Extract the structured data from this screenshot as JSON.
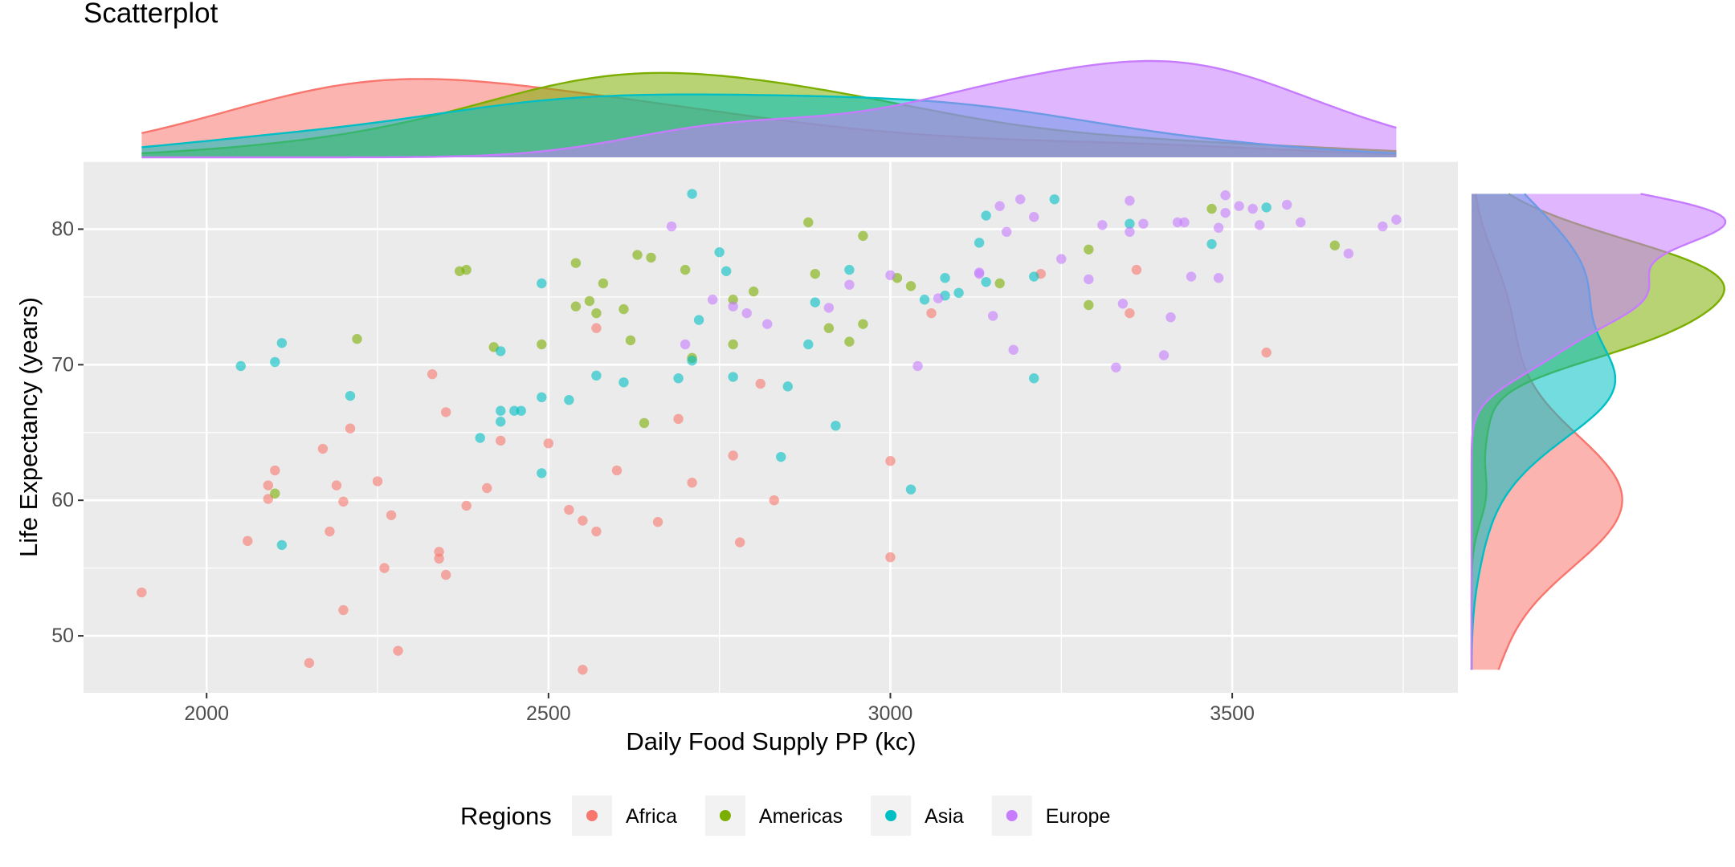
{
  "chart_data": {
    "type": "scatter",
    "title": "Scatterplot",
    "xlabel": "Daily Food Supply PP (kc)",
    "ylabel": "Life Expectancy (years)",
    "xlim": [
      1820,
      3830
    ],
    "ylim": [
      45.8,
      85.0
    ],
    "x_ticks": [
      2000,
      2500,
      3000,
      3500
    ],
    "y_ticks": [
      50,
      60,
      70,
      80
    ],
    "grid": true,
    "marginal_density": {
      "top": "x",
      "right": "y"
    },
    "legend": {
      "title": "Regions",
      "position": "bottom"
    },
    "series": [
      {
        "name": "Africa",
        "color": "#F8766D",
        "points": [
          [
            1905,
            53.2
          ],
          [
            2060,
            57.0
          ],
          [
            2090,
            61.1
          ],
          [
            2090,
            60.1
          ],
          [
            2100,
            62.2
          ],
          [
            2150,
            48.0
          ],
          [
            2170,
            63.8
          ],
          [
            2180,
            57.7
          ],
          [
            2190,
            61.1
          ],
          [
            2200,
            59.9
          ],
          [
            2200,
            51.9
          ],
          [
            2210,
            65.3
          ],
          [
            2250,
            61.4
          ],
          [
            2260,
            55.0
          ],
          [
            2270,
            58.9
          ],
          [
            2280,
            48.9
          ],
          [
            2330,
            69.3
          ],
          [
            2340,
            56.2
          ],
          [
            2340,
            55.7
          ],
          [
            2350,
            54.5
          ],
          [
            2350,
            66.5
          ],
          [
            2380,
            59.6
          ],
          [
            2410,
            60.9
          ],
          [
            2430,
            64.4
          ],
          [
            2500,
            64.2
          ],
          [
            2530,
            59.3
          ],
          [
            2550,
            58.5
          ],
          [
            2550,
            47.5
          ],
          [
            2570,
            72.7
          ],
          [
            2570,
            57.7
          ],
          [
            2600,
            62.2
          ],
          [
            2660,
            58.4
          ],
          [
            2690,
            66.0
          ],
          [
            2710,
            61.3
          ],
          [
            2770,
            63.3
          ],
          [
            2780,
            56.9
          ],
          [
            2810,
            68.6
          ],
          [
            2830,
            60.0
          ],
          [
            3000,
            62.9
          ],
          [
            3000,
            55.8
          ],
          [
            3060,
            73.8
          ],
          [
            3220,
            76.7
          ],
          [
            3350,
            73.8
          ],
          [
            3360,
            77.0
          ],
          [
            3550,
            70.9
          ]
        ]
      },
      {
        "name": "Americas",
        "color": "#7CAE00",
        "points": [
          [
            2100,
            60.5
          ],
          [
            2220,
            71.9
          ],
          [
            2370,
            76.9
          ],
          [
            2380,
            77.0
          ],
          [
            2420,
            71.3
          ],
          [
            2490,
            71.5
          ],
          [
            2540,
            77.5
          ],
          [
            2540,
            74.3
          ],
          [
            2560,
            74.7
          ],
          [
            2570,
            73.8
          ],
          [
            2580,
            76.0
          ],
          [
            2610,
            74.1
          ],
          [
            2620,
            71.8
          ],
          [
            2630,
            78.1
          ],
          [
            2640,
            65.7
          ],
          [
            2650,
            77.9
          ],
          [
            2700,
            77.0
          ],
          [
            2710,
            70.5
          ],
          [
            2770,
            71.5
          ],
          [
            2770,
            74.8
          ],
          [
            2800,
            75.4
          ],
          [
            2880,
            80.5
          ],
          [
            2890,
            76.7
          ],
          [
            2910,
            72.7
          ],
          [
            2940,
            71.7
          ],
          [
            2960,
            79.5
          ],
          [
            2960,
            73.0
          ],
          [
            3010,
            76.4
          ],
          [
            3030,
            75.8
          ],
          [
            3160,
            76.0
          ],
          [
            3290,
            78.5
          ],
          [
            3290,
            74.4
          ],
          [
            3470,
            81.5
          ],
          [
            3650,
            78.8
          ]
        ]
      },
      {
        "name": "Asia",
        "color": "#00BFC4",
        "points": [
          [
            2050,
            69.9
          ],
          [
            2100,
            70.2
          ],
          [
            2110,
            71.6
          ],
          [
            2110,
            56.7
          ],
          [
            2210,
            67.7
          ],
          [
            2400,
            64.6
          ],
          [
            2430,
            71.0
          ],
          [
            2430,
            66.6
          ],
          [
            2430,
            65.8
          ],
          [
            2450,
            66.6
          ],
          [
            2460,
            66.6
          ],
          [
            2490,
            76.0
          ],
          [
            2490,
            67.6
          ],
          [
            2490,
            62.0
          ],
          [
            2530,
            67.4
          ],
          [
            2570,
            69.2
          ],
          [
            2610,
            68.7
          ],
          [
            2690,
            69.0
          ],
          [
            2710,
            70.3
          ],
          [
            2710,
            82.6
          ],
          [
            2720,
            73.3
          ],
          [
            2750,
            78.3
          ],
          [
            2760,
            76.9
          ],
          [
            2770,
            69.1
          ],
          [
            2840,
            63.2
          ],
          [
            2850,
            68.4
          ],
          [
            2880,
            71.5
          ],
          [
            2890,
            74.6
          ],
          [
            2920,
            65.5
          ],
          [
            2940,
            77.0
          ],
          [
            3030,
            60.8
          ],
          [
            3050,
            74.8
          ],
          [
            3080,
            75.1
          ],
          [
            3080,
            76.4
          ],
          [
            3100,
            75.3
          ],
          [
            3130,
            79.0
          ],
          [
            3140,
            81.0
          ],
          [
            3140,
            76.1
          ],
          [
            3210,
            76.5
          ],
          [
            3210,
            69.0
          ],
          [
            3240,
            82.2
          ],
          [
            3350,
            80.4
          ],
          [
            3470,
            78.9
          ],
          [
            3550,
            81.6
          ]
        ]
      },
      {
        "name": "Europe",
        "color": "#C77CFF",
        "points": [
          [
            2680,
            80.2
          ],
          [
            2700,
            71.5
          ],
          [
            2740,
            74.8
          ],
          [
            2770,
            74.3
          ],
          [
            2790,
            73.8
          ],
          [
            2820,
            73.0
          ],
          [
            2910,
            74.2
          ],
          [
            2940,
            75.9
          ],
          [
            3000,
            76.6
          ],
          [
            3040,
            69.9
          ],
          [
            3070,
            74.9
          ],
          [
            3130,
            76.8
          ],
          [
            3130,
            76.7
          ],
          [
            3150,
            73.6
          ],
          [
            3160,
            81.7
          ],
          [
            3170,
            79.8
          ],
          [
            3180,
            71.1
          ],
          [
            3190,
            82.2
          ],
          [
            3210,
            80.9
          ],
          [
            3250,
            77.8
          ],
          [
            3290,
            76.3
          ],
          [
            3310,
            80.3
          ],
          [
            3330,
            69.8
          ],
          [
            3340,
            74.5
          ],
          [
            3350,
            82.1
          ],
          [
            3350,
            79.8
          ],
          [
            3370,
            80.4
          ],
          [
            3400,
            70.7
          ],
          [
            3410,
            73.5
          ],
          [
            3420,
            80.5
          ],
          [
            3430,
            80.5
          ],
          [
            3440,
            76.5
          ],
          [
            3480,
            80.1
          ],
          [
            3480,
            76.4
          ],
          [
            3490,
            82.5
          ],
          [
            3490,
            81.2
          ],
          [
            3510,
            81.7
          ],
          [
            3530,
            81.5
          ],
          [
            3540,
            80.3
          ],
          [
            3580,
            81.8
          ],
          [
            3600,
            80.5
          ],
          [
            3670,
            78.2
          ],
          [
            3720,
            80.2
          ],
          [
            3740,
            80.7
          ]
        ]
      }
    ]
  }
}
